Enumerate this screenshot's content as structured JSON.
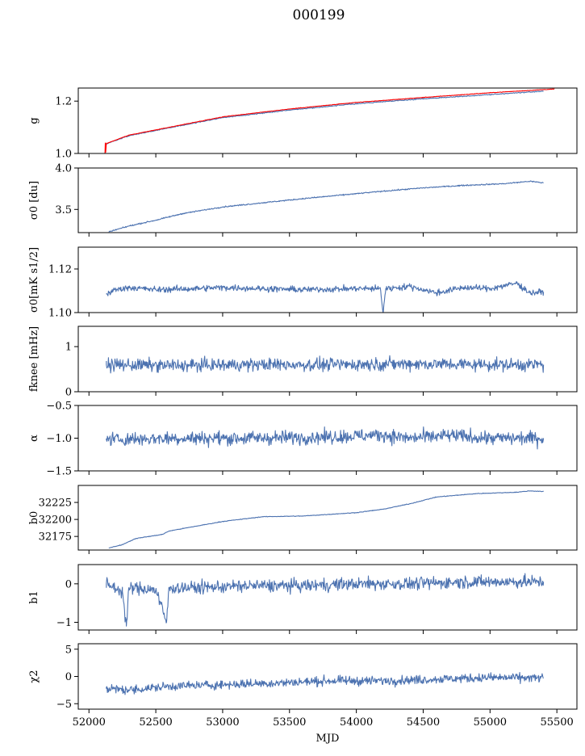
{
  "figure": {
    "title": "000199"
  },
  "chart_data": [
    {
      "type": "line",
      "id": "g",
      "ylabel": "g",
      "ylim": [
        1.0,
        1.25
      ],
      "yticks": [
        1.0,
        1.2
      ],
      "ytick_labels": [
        "1.0",
        "1.2"
      ],
      "xlim": [
        51920,
        55650
      ],
      "series": [
        {
          "color": "#4c72b0",
          "x": [
            52130,
            52300,
            52600,
            53000,
            53500,
            54000,
            54500,
            55000,
            55400
          ],
          "y": [
            1.037,
            1.068,
            1.098,
            1.137,
            1.166,
            1.19,
            1.209,
            1.225,
            1.238
          ]
        },
        {
          "color": "#ff0000",
          "x": [
            52120,
            52122,
            52125,
            52130,
            52300,
            52600,
            53000,
            53500,
            54000,
            54500,
            55000,
            55400,
            55480
          ],
          "y": [
            1.0,
            1.04,
            1.005,
            1.038,
            1.07,
            1.1,
            1.14,
            1.17,
            1.195,
            1.214,
            1.232,
            1.244,
            1.246
          ]
        }
      ]
    },
    {
      "type": "line",
      "id": "sigma0_du",
      "ylabel": "σ0 [du]",
      "ylim": [
        3.22,
        4.0
      ],
      "yticks": [
        3.5,
        4.0
      ],
      "ytick_labels": [
        "3.5",
        "4.0"
      ],
      "xlim": [
        51920,
        55650
      ],
      "series": [
        {
          "color": "#4c72b0",
          "x": [
            52150,
            52300,
            52500,
            52700,
            53000,
            53300,
            53600,
            54000,
            54200,
            54500,
            54800,
            55100,
            55300,
            55400
          ],
          "y": [
            3.23,
            3.3,
            3.37,
            3.45,
            3.53,
            3.58,
            3.63,
            3.69,
            3.72,
            3.76,
            3.79,
            3.81,
            3.84,
            3.82
          ]
        }
      ]
    },
    {
      "type": "line",
      "id": "sigma0_mk",
      "ylabel": "σ0[mK s1/2]",
      "ylim": [
        1.1,
        1.13
      ],
      "yticks": [
        1.1,
        1.12
      ],
      "ytick_labels": [
        "1.10",
        "1.12"
      ],
      "xlim": [
        51920,
        55650
      ],
      "series": [
        {
          "color": "#4c72b0",
          "x": [
            52130,
            52200,
            52300,
            52500,
            52800,
            53000,
            53300,
            53600,
            54000,
            54180,
            54200,
            54220,
            54400,
            54600,
            54800,
            55000,
            55200,
            55300,
            55400
          ],
          "y": [
            1.1085,
            1.1105,
            1.1115,
            1.1105,
            1.111,
            1.1115,
            1.111,
            1.1105,
            1.111,
            1.111,
            1.1,
            1.111,
            1.112,
            1.109,
            1.1115,
            1.111,
            1.1135,
            1.109,
            1.1095
          ]
        }
      ]
    },
    {
      "type": "line",
      "id": "fknee",
      "ylabel": "fknee [mHz]",
      "ylim": [
        0,
        1.45
      ],
      "yticks": [
        0,
        1
      ],
      "ytick_labels": [
        "0",
        "1"
      ],
      "xlim": [
        51920,
        55650
      ],
      "series": [
        {
          "color": "#4c72b0",
          "x": [
            52130,
            52600,
            53200,
            53800,
            54400,
            55000,
            55400
          ],
          "y": [
            0.6,
            0.58,
            0.6,
            0.6,
            0.62,
            0.6,
            0.6
          ]
        }
      ]
    },
    {
      "type": "line",
      "id": "alpha",
      "ylabel": "α",
      "ylim": [
        -1.5,
        -0.5
      ],
      "yticks": [
        -1.5,
        -1.0,
        -0.5
      ],
      "ytick_labels": [
        "−1.5",
        "−1.0",
        "−0.5"
      ],
      "xlim": [
        51920,
        55650
      ],
      "series": [
        {
          "color": "#4c72b0",
          "x": [
            52130,
            52600,
            53200,
            53800,
            54200,
            54400,
            54700,
            55000,
            55400
          ],
          "y": [
            -1.02,
            -1.0,
            -1.0,
            -0.98,
            -0.95,
            -1.0,
            -0.96,
            -1.0,
            -1.0
          ]
        }
      ]
    },
    {
      "type": "line",
      "id": "b0",
      "ylabel": "b0",
      "ylim": [
        32155,
        32250
      ],
      "yticks": [
        32175,
        32200,
        32225
      ],
      "ytick_labels": [
        "32175",
        "32200",
        "32225"
      ],
      "xlim": [
        51920,
        55650
      ],
      "series": [
        {
          "color": "#4c72b0",
          "x": [
            52150,
            52250,
            52350,
            52550,
            52600,
            52800,
            53000,
            53300,
            53600,
            54000,
            54200,
            54400,
            54600,
            54900,
            55200,
            55300,
            55400
          ],
          "y": [
            32158,
            32163,
            32172,
            32178,
            32183,
            32190,
            32197,
            32204,
            32205,
            32210,
            32215,
            32223,
            32233,
            32238,
            32240,
            32242,
            32241
          ]
        }
      ]
    },
    {
      "type": "line",
      "id": "b1",
      "ylabel": "b1",
      "ylim": [
        -1.2,
        0.5
      ],
      "yticks": [
        -1,
        0
      ],
      "ytick_labels": [
        "−1",
        "0"
      ],
      "xlim": [
        51920,
        55650
      ],
      "series": [
        {
          "color": "#4c72b0",
          "x": [
            52130,
            52250,
            52280,
            52300,
            52500,
            52580,
            52600,
            52800,
            53200,
            53600,
            54000,
            54400,
            54800,
            55200,
            55400
          ],
          "y": [
            0.0,
            -0.2,
            -1.1,
            -0.1,
            -0.15,
            -1.0,
            -0.1,
            -0.1,
            -0.05,
            -0.05,
            0.0,
            0.0,
            0.05,
            0.05,
            0.05
          ]
        }
      ]
    },
    {
      "type": "line",
      "id": "chi2",
      "ylabel": "χ2",
      "xlabel": "MJD",
      "ylim": [
        -6,
        6
      ],
      "yticks": [
        -5,
        0,
        5
      ],
      "ytick_labels": [
        "−5",
        "0",
        "5"
      ],
      "xlim": [
        51920,
        55650
      ],
      "xticks": [
        52000,
        52500,
        53000,
        53500,
        54000,
        54500,
        55000,
        55500
      ],
      "xtick_labels": [
        "52000",
        "52500",
        "53000",
        "53500",
        "54000",
        "54500",
        "55000",
        "55500"
      ],
      "series": [
        {
          "color": "#4c72b0",
          "x": [
            52130,
            52300,
            52600,
            53000,
            53400,
            53800,
            54200,
            54600,
            55000,
            55400
          ],
          "y": [
            -2.2,
            -2.5,
            -1.8,
            -1.5,
            -1.2,
            -0.8,
            -0.8,
            -0.5,
            -0.2,
            -0.3
          ]
        }
      ]
    }
  ]
}
